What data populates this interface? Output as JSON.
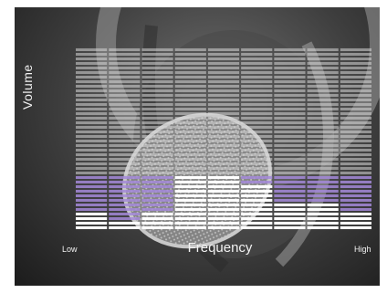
{
  "chart_data": {
    "type": "bar",
    "xlabel": "Frequency",
    "ylabel": "Volume",
    "x_low_label": "Low",
    "x_high_label": "High",
    "total_levels": 40,
    "ylim": [
      0,
      40
    ],
    "bands": [
      {
        "value": 4,
        "highlight_top": 12
      },
      {
        "value": 2,
        "highlight_top": 12
      },
      {
        "value": 4,
        "highlight_top": 12
      },
      {
        "value": 12,
        "highlight_top": 12
      },
      {
        "value": 12,
        "highlight_top": 12
      },
      {
        "value": 10,
        "highlight_top": 12
      },
      {
        "value": 6,
        "highlight_top": 12
      },
      {
        "value": 6,
        "highlight_top": 12
      },
      {
        "value": 4,
        "highlight_top": 12
      }
    ],
    "colors": {
      "lit": "#ffffff",
      "highlight": "#a58ad9",
      "unlit": "#d9d9d9"
    }
  }
}
